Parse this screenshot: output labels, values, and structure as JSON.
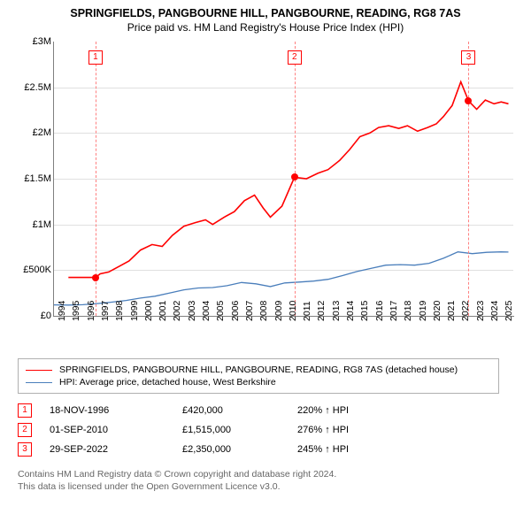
{
  "title": "SPRINGFIELDS, PANGBOURNE HILL, PANGBOURNE, READING, RG8 7AS",
  "subtitle": "Price paid vs. HM Land Registry's House Price Index (HPI)",
  "chart": {
    "type": "line",
    "ylim": [
      0,
      3000000
    ],
    "yticks": [
      {
        "v": 0,
        "label": "£0"
      },
      {
        "v": 500000,
        "label": "£500K"
      },
      {
        "v": 1000000,
        "label": "£1M"
      },
      {
        "v": 1500000,
        "label": "£1.5M"
      },
      {
        "v": 2000000,
        "label": "£2M"
      },
      {
        "v": 2500000,
        "label": "£2.5M"
      },
      {
        "v": 3000000,
        "label": "£3M"
      }
    ],
    "xlim": [
      1994,
      2025.9
    ],
    "xticks": [
      1994,
      1995,
      1996,
      1997,
      1998,
      1999,
      2000,
      2001,
      2002,
      2003,
      2004,
      2005,
      2006,
      2007,
      2008,
      2009,
      2010,
      2011,
      2012,
      2013,
      2014,
      2015,
      2016,
      2017,
      2018,
      2019,
      2020,
      2021,
      2022,
      2023,
      2024,
      2025
    ],
    "grid_color": "#e0e0e0",
    "axis_color": "#808080",
    "background": "#ffffff",
    "series": [
      {
        "name": "property",
        "color": "#ff0000",
        "width": 1.6,
        "points": [
          [
            1995.0,
            420000
          ],
          [
            1996.88,
            420000
          ],
          [
            1997.2,
            460000
          ],
          [
            1997.8,
            480000
          ],
          [
            1998.5,
            540000
          ],
          [
            1999.2,
            600000
          ],
          [
            2000.0,
            720000
          ],
          [
            2000.8,
            780000
          ],
          [
            2001.5,
            760000
          ],
          [
            2002.2,
            880000
          ],
          [
            2003.0,
            980000
          ],
          [
            2003.8,
            1020000
          ],
          [
            2004.5,
            1050000
          ],
          [
            2005.0,
            1000000
          ],
          [
            2005.8,
            1080000
          ],
          [
            2006.5,
            1140000
          ],
          [
            2007.2,
            1260000
          ],
          [
            2007.9,
            1320000
          ],
          [
            2008.5,
            1180000
          ],
          [
            2009.0,
            1080000
          ],
          [
            2009.8,
            1200000
          ],
          [
            2010.67,
            1515000
          ],
          [
            2011.5,
            1500000
          ],
          [
            2012.3,
            1560000
          ],
          [
            2013.0,
            1600000
          ],
          [
            2013.8,
            1700000
          ],
          [
            2014.5,
            1820000
          ],
          [
            2015.2,
            1960000
          ],
          [
            2015.9,
            2000000
          ],
          [
            2016.5,
            2060000
          ],
          [
            2017.2,
            2080000
          ],
          [
            2017.9,
            2050000
          ],
          [
            2018.5,
            2080000
          ],
          [
            2019.2,
            2020000
          ],
          [
            2019.9,
            2060000
          ],
          [
            2020.5,
            2100000
          ],
          [
            2021.0,
            2180000
          ],
          [
            2021.6,
            2300000
          ],
          [
            2022.2,
            2560000
          ],
          [
            2022.74,
            2350000
          ],
          [
            2023.3,
            2260000
          ],
          [
            2023.9,
            2360000
          ],
          [
            2024.5,
            2320000
          ],
          [
            2025.0,
            2340000
          ],
          [
            2025.5,
            2320000
          ]
        ]
      },
      {
        "name": "hpi",
        "color": "#4a7ebb",
        "width": 1.3,
        "points": [
          [
            1994.0,
            120000
          ],
          [
            1995.0,
            118000
          ],
          [
            1996.0,
            122000
          ],
          [
            1997.0,
            135000
          ],
          [
            1998.0,
            150000
          ],
          [
            1999.0,
            168000
          ],
          [
            2000.0,
            195000
          ],
          [
            2001.0,
            215000
          ],
          [
            2002.0,
            250000
          ],
          [
            2003.0,
            285000
          ],
          [
            2004.0,
            305000
          ],
          [
            2005.0,
            310000
          ],
          [
            2006.0,
            330000
          ],
          [
            2007.0,
            365000
          ],
          [
            2008.0,
            350000
          ],
          [
            2009.0,
            320000
          ],
          [
            2010.0,
            360000
          ],
          [
            2011.0,
            370000
          ],
          [
            2012.0,
            380000
          ],
          [
            2013.0,
            400000
          ],
          [
            2014.0,
            440000
          ],
          [
            2015.0,
            485000
          ],
          [
            2016.0,
            520000
          ],
          [
            2017.0,
            555000
          ],
          [
            2018.0,
            560000
          ],
          [
            2019.0,
            555000
          ],
          [
            2020.0,
            575000
          ],
          [
            2021.0,
            630000
          ],
          [
            2022.0,
            700000
          ],
          [
            2023.0,
            680000
          ],
          [
            2024.0,
            695000
          ],
          [
            2025.0,
            700000
          ],
          [
            2025.5,
            698000
          ]
        ]
      }
    ],
    "markers": [
      {
        "n": "1",
        "x": 1996.88,
        "y": 420000
      },
      {
        "n": "2",
        "x": 2010.67,
        "y": 1515000
      },
      {
        "n": "3",
        "x": 2022.74,
        "y": 2350000
      }
    ]
  },
  "legend": [
    {
      "color": "#ff0000",
      "width": 1.6,
      "label": "SPRINGFIELDS, PANGBOURNE HILL, PANGBOURNE, READING, RG8 7AS (detached house)"
    },
    {
      "color": "#4a7ebb",
      "width": 1.3,
      "label": "HPI: Average price, detached house, West Berkshire"
    }
  ],
  "sales": [
    {
      "n": "1",
      "date": "18-NOV-1996",
      "price": "£420,000",
      "hpi": "220% ↑ HPI"
    },
    {
      "n": "2",
      "date": "01-SEP-2010",
      "price": "£1,515,000",
      "hpi": "276% ↑ HPI"
    },
    {
      "n": "3",
      "date": "29-SEP-2022",
      "price": "£2,350,000",
      "hpi": "245% ↑ HPI"
    }
  ],
  "footer_line1": "Contains HM Land Registry data © Crown copyright and database right 2024.",
  "footer_line2": "This data is licensed under the Open Government Licence v3.0."
}
